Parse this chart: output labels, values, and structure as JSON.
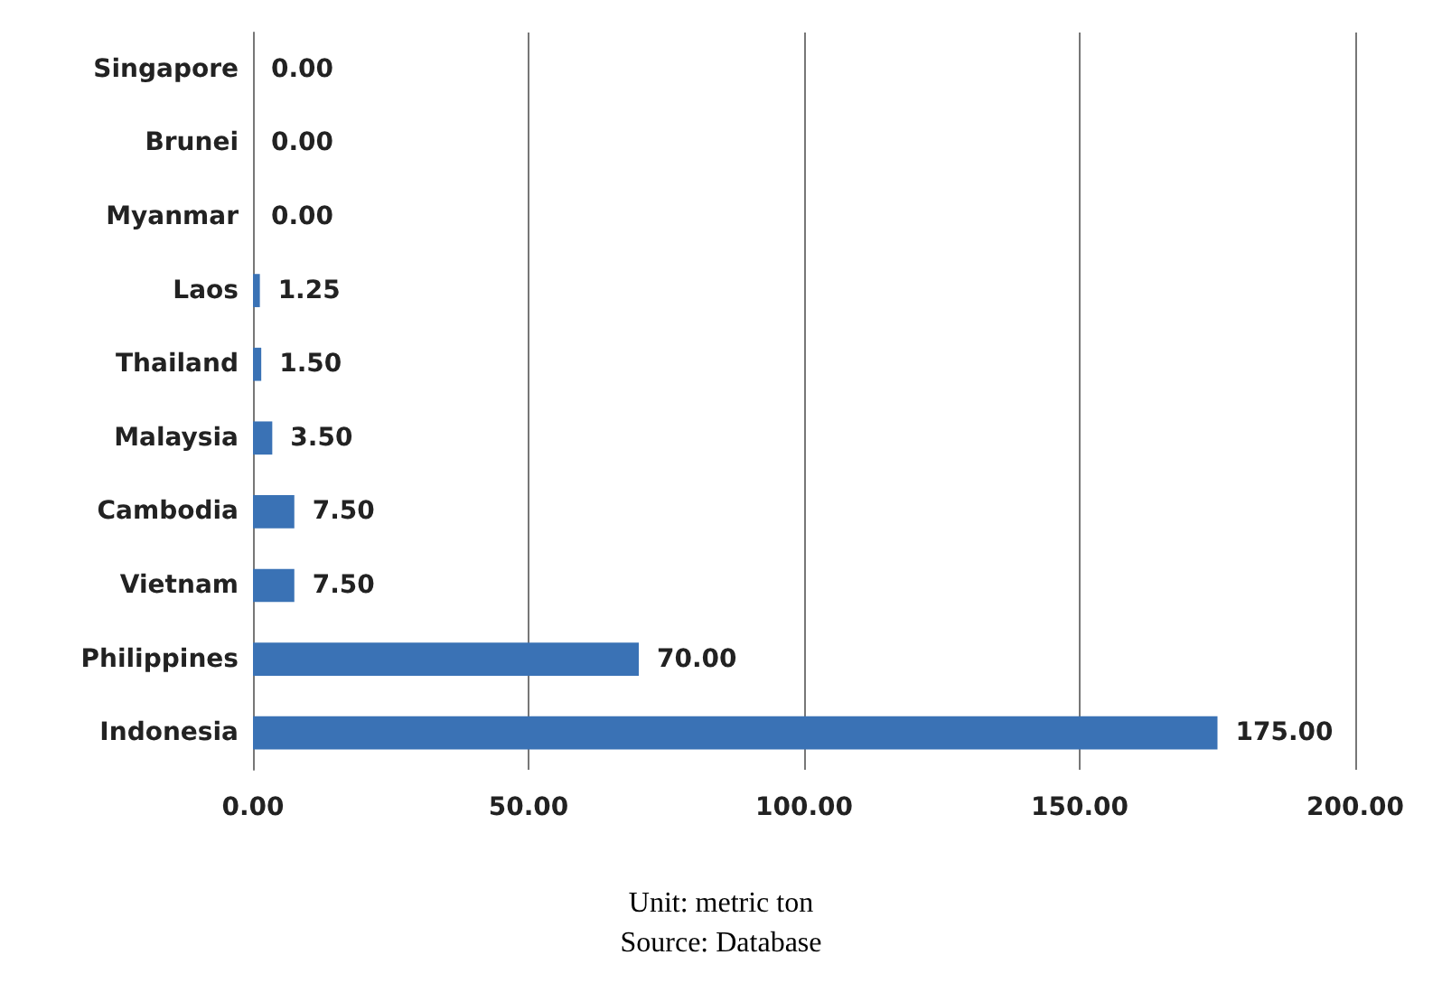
{
  "chart_data": {
    "type": "bar",
    "orientation": "horizontal",
    "categories": [
      "Singapore",
      "Brunei",
      "Myanmar",
      "Laos",
      "Thailand",
      "Malaysia",
      "Cambodia",
      "Vietnam",
      "Philippines",
      "Indonesia"
    ],
    "values": [
      0,
      0,
      0,
      1.25,
      1.5,
      3.5,
      7.5,
      7.5,
      70,
      175
    ],
    "value_labels": [
      "0.00",
      "0.00",
      "0.00",
      "1.25",
      "1.50",
      "3.50",
      "7.50",
      "7.50",
      "70.00",
      "175.00"
    ],
    "color": "#3a72b5",
    "xlim": [
      0,
      200
    ],
    "xticks": [
      {
        "value": 0,
        "label": "0.00"
      },
      {
        "value": 50,
        "label": "50.00"
      },
      {
        "value": 100,
        "label": "100.00"
      },
      {
        "value": 150,
        "label": "150.00"
      },
      {
        "value": 200,
        "label": "200.00"
      }
    ],
    "grid": "x",
    "annotations": [
      "Unit: metric ton",
      "Source: Database"
    ]
  }
}
